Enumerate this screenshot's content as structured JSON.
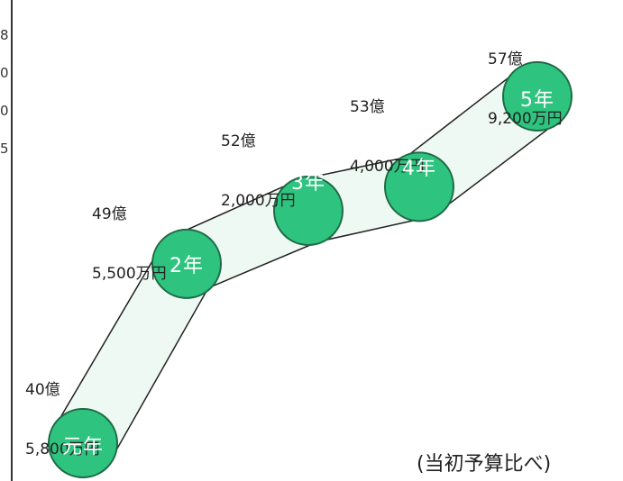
{
  "chart_data": {
    "type": "line",
    "title": "",
    "xlabel": "",
    "ylabel": "",
    "categories": [
      "元年",
      "2年",
      "3年",
      "4年",
      "5年"
    ],
    "values": [
      40.58,
      49.55,
      52.2,
      53.4,
      57.92
    ],
    "value_labels": [
      [
        "40億",
        "5,800万円"
      ],
      [
        "49億",
        "5,500万円"
      ],
      [
        "52億",
        "2,000万円"
      ],
      [
        "53億",
        "4,000万円"
      ],
      [
        "57億",
        "9,200万円"
      ]
    ],
    "note": "(当初予算比べ)",
    "edge_digits": [
      "8",
      "0",
      "0",
      "5"
    ],
    "colors": {
      "node": "#2ec47f",
      "node_stroke": "#1f6b46",
      "band": "#eef9f3",
      "band_stroke": "#222222"
    }
  }
}
